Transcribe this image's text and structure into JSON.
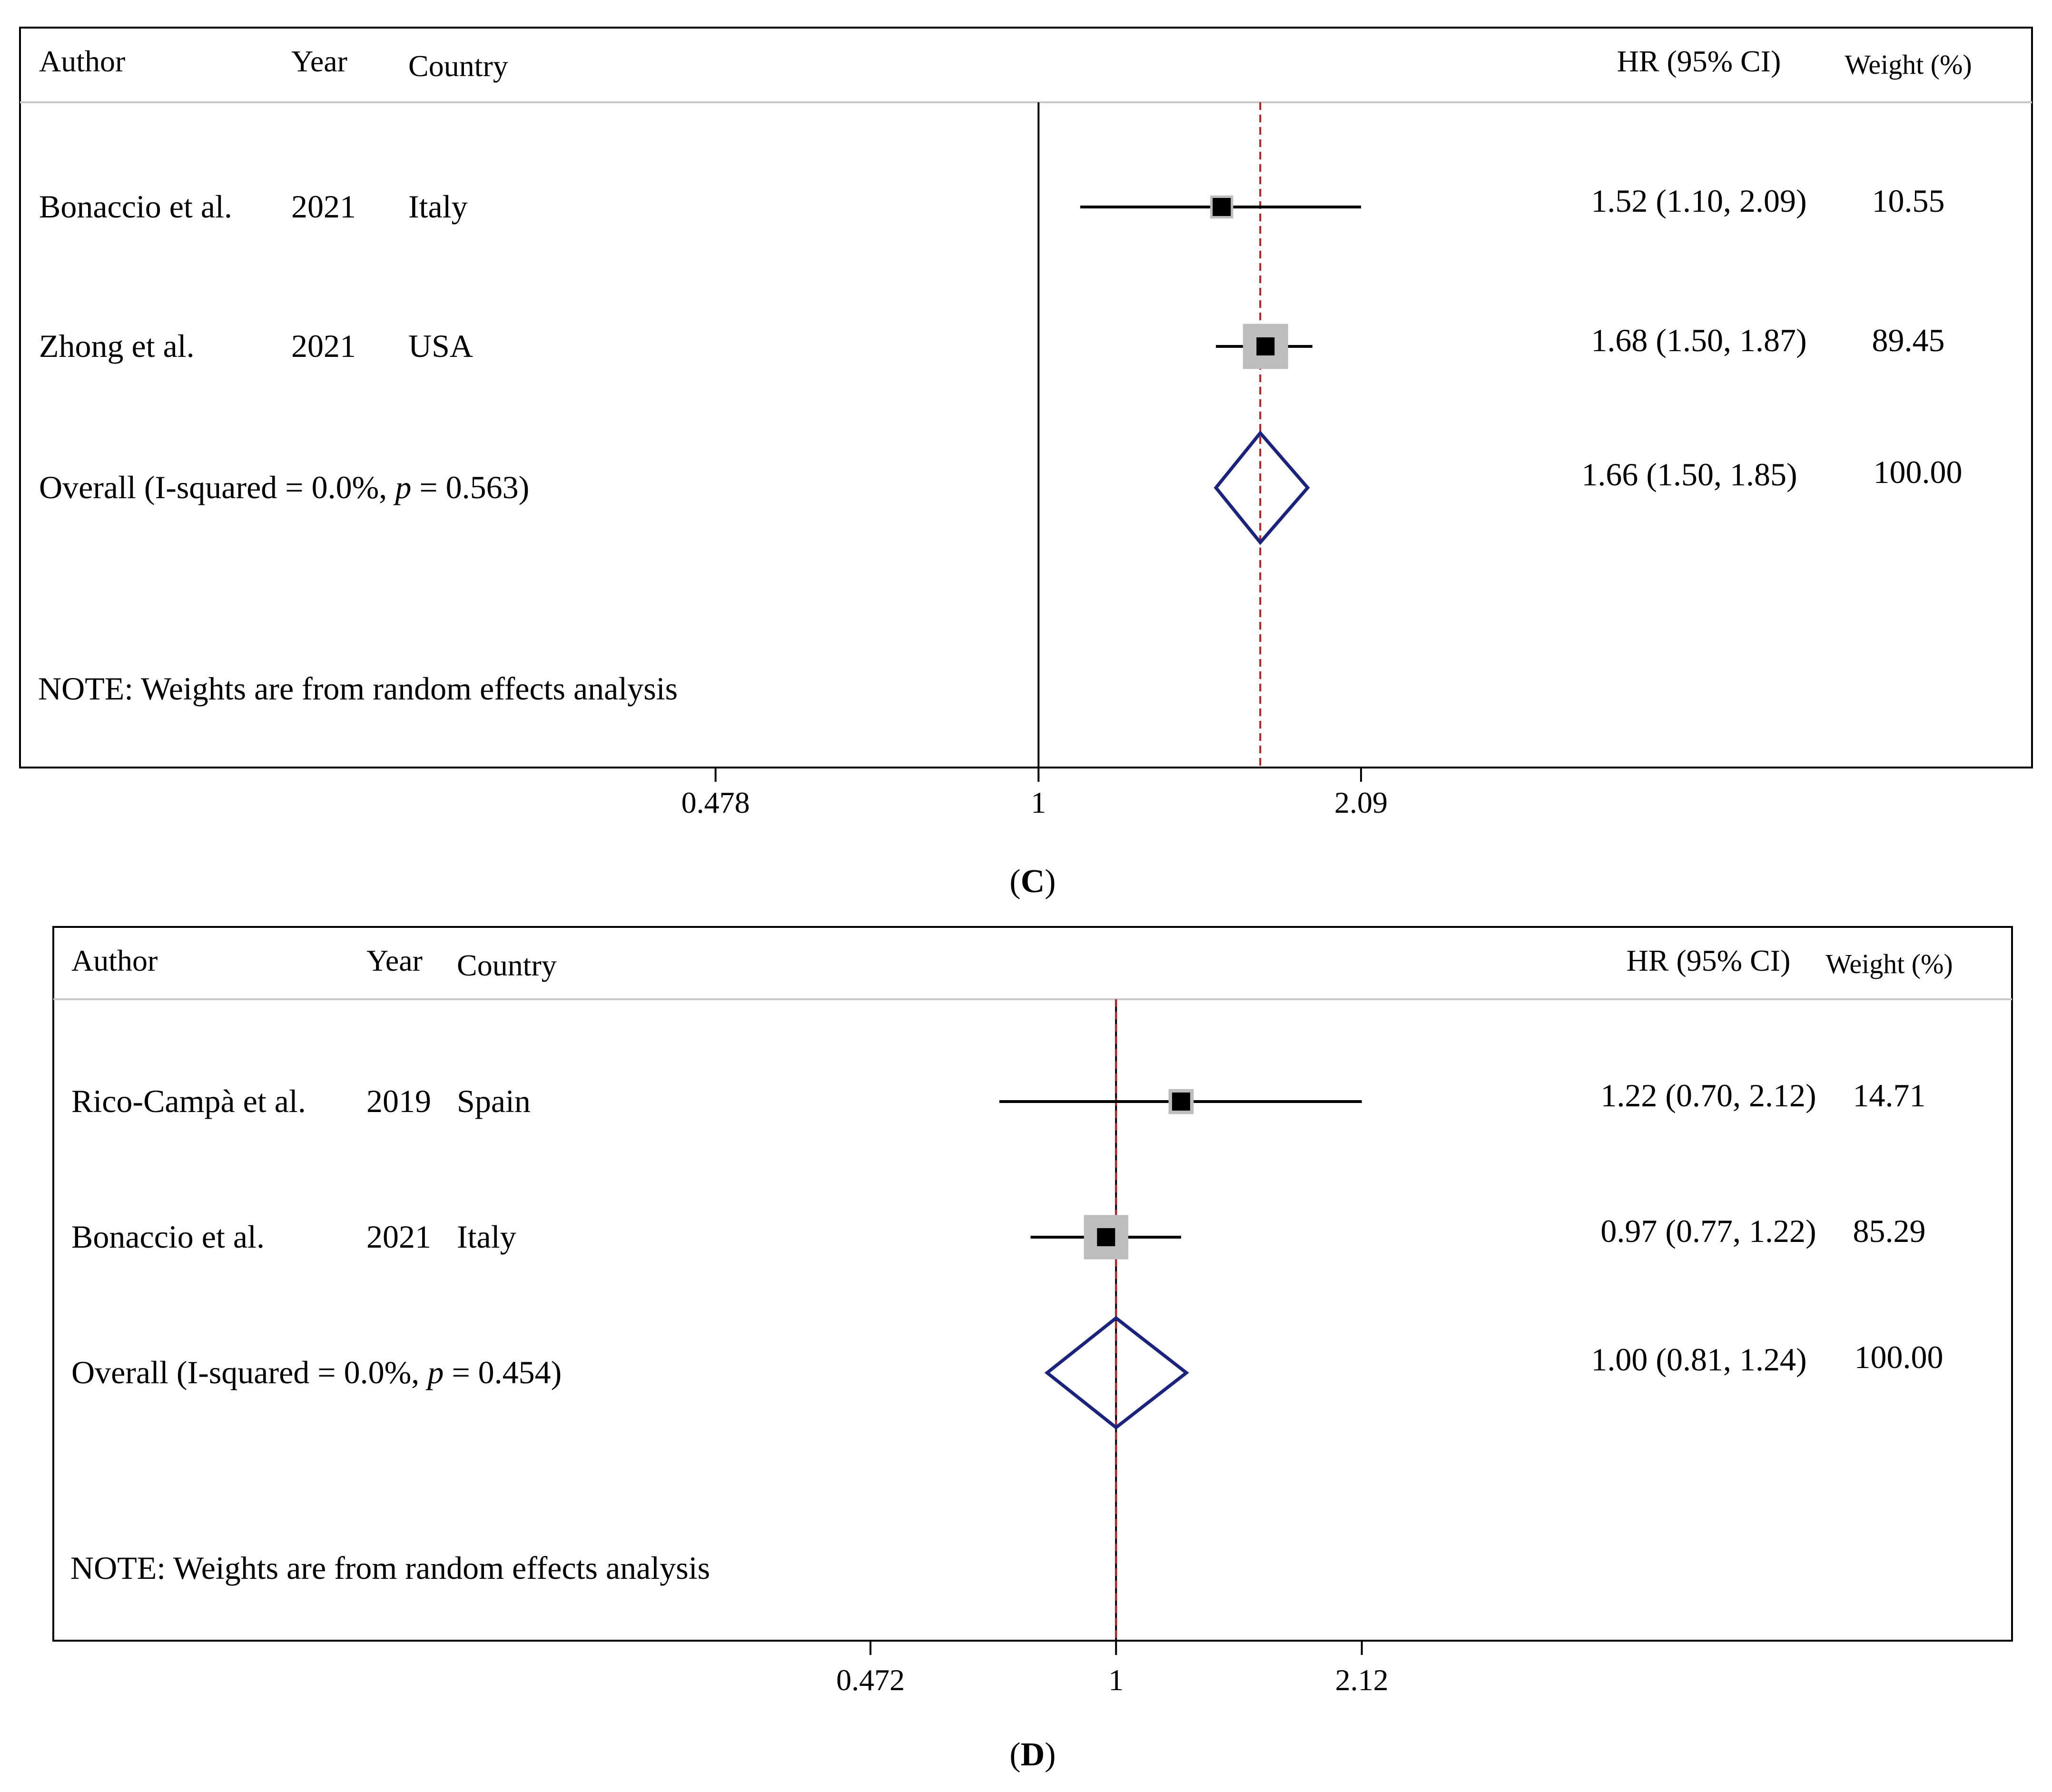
{
  "chart_data": [
    {
      "type": "forest",
      "panel_label": "C",
      "columns": {
        "author": "Author",
        "year": "Year",
        "country": "Country",
        "hr": "HR (95% CI)",
        "weight": "Weight (%)"
      },
      "reference_line": 1,
      "pooled_estimate_line": 1.66,
      "axis": {
        "scale": "log",
        "ticks": [
          0.478,
          1,
          2.09
        ],
        "tick_labels": [
          "0.478",
          "1",
          "2.09"
        ],
        "range": [
          0.33,
          3.3
        ]
      },
      "studies": [
        {
          "author": "Bonaccio et al.",
          "year": "2021",
          "country": "Italy",
          "hr": 1.52,
          "lower": 1.1,
          "upper": 2.09,
          "hr_text": "1.52 (1.10, 2.09)",
          "weight": 10.55,
          "weight_text": "10.55"
        },
        {
          "author": "Zhong et al.",
          "year": "2021",
          "country": "USA",
          "hr": 1.68,
          "lower": 1.5,
          "upper": 1.87,
          "hr_text": "1.68 (1.50, 1.87)",
          "weight": 89.45,
          "weight_text": "89.45"
        }
      ],
      "overall": {
        "label_prefix": "Overall (I-squared = 0.0%, ",
        "p_symbol": "p",
        "label_suffix": " = 0.563)",
        "hr": 1.66,
        "lower": 1.5,
        "upper": 1.85,
        "hr_text": "1.66 (1.50, 1.85)",
        "weight_text": "100.00"
      },
      "note": "NOTE: Weights are from random effects analysis"
    },
    {
      "type": "forest",
      "panel_label": "D",
      "columns": {
        "author": "Author",
        "year": "Year",
        "country": "Country",
        "hr": "HR (95% CI)",
        "weight": "Weight (%)"
      },
      "reference_line": 1,
      "pooled_estimate_line": 1.0,
      "axis": {
        "scale": "log",
        "ticks": [
          0.472,
          1,
          2.12
        ],
        "tick_labels": [
          "0.472",
          "1",
          "2.12"
        ],
        "range": [
          0.205,
          4.1
        ]
      },
      "studies": [
        {
          "author": "Rico-Campà et al.",
          "year": "2019",
          "country": "Spain",
          "hr": 1.22,
          "lower": 0.7,
          "upper": 2.12,
          "hr_text": "1.22 (0.70, 2.12)",
          "weight": 14.71,
          "weight_text": "14.71"
        },
        {
          "author": "Bonaccio et al.",
          "year": "2021",
          "country": "Italy",
          "hr": 0.97,
          "lower": 0.77,
          "upper": 1.22,
          "hr_text": "0.97 (0.77, 1.22)",
          "weight": 85.29,
          "weight_text": "85.29"
        }
      ],
      "overall": {
        "label_prefix": "Overall (I-squared = 0.0%, ",
        "p_symbol": "p",
        "label_suffix": " = 0.454)",
        "hr": 1.0,
        "lower": 0.81,
        "upper": 1.24,
        "hr_text": "1.00 (0.81, 1.24)",
        "weight_text": "100.00"
      },
      "note": "NOTE: Weights are from random effects analysis"
    }
  ],
  "colors": {
    "diamond": "#1a237e",
    "pooled_line": "#b22222",
    "weight_box": "#bdbdbd",
    "axis": "#000000"
  }
}
